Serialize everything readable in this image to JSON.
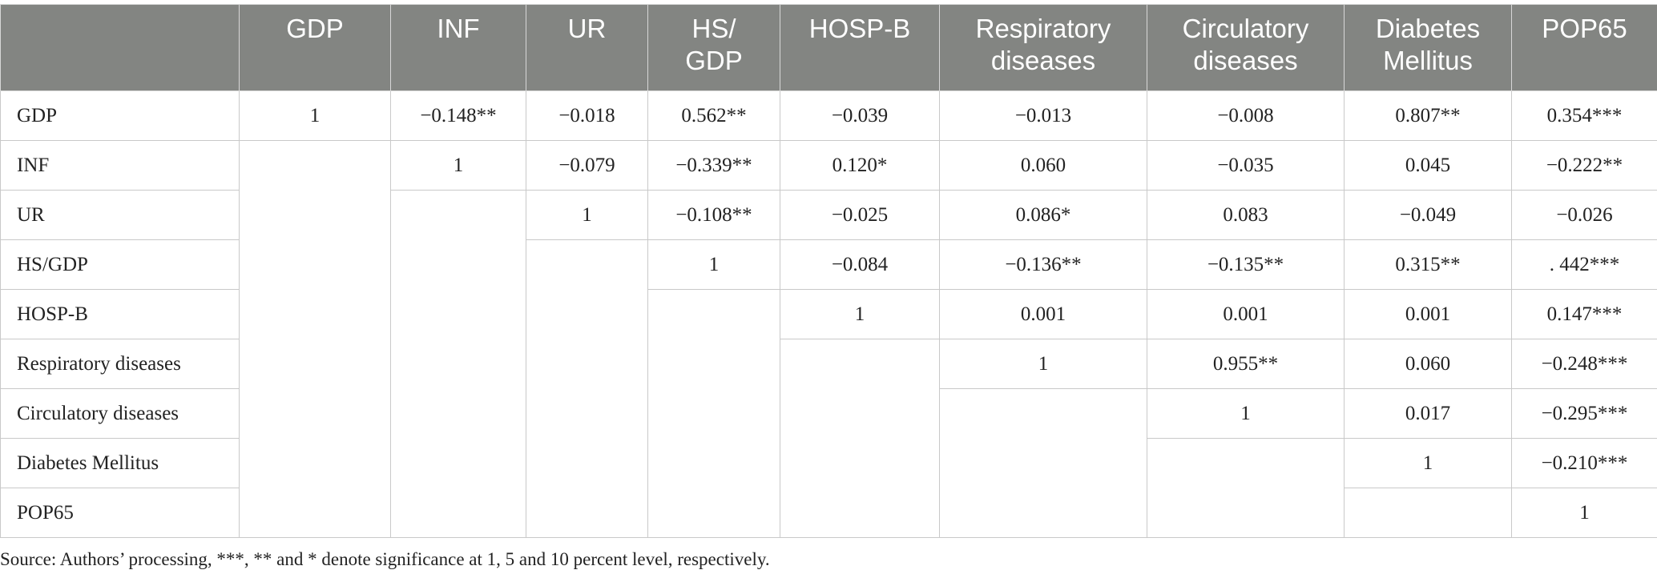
{
  "table": {
    "columns": [
      "",
      "GDP",
      "INF",
      "UR",
      "HS/\nGDP",
      "HOSP-B",
      "Respiratory\ndiseases",
      "Circulatory\ndiseases",
      "Diabetes\nMellitus",
      "POP65"
    ],
    "rows": [
      {
        "label": "GDP",
        "cells": [
          "1",
          "−0.148**",
          "−0.018",
          "0.562**",
          "−0.039",
          "−0.013",
          "−0.008",
          "0.807**",
          "0.354***"
        ]
      },
      {
        "label": "INF",
        "cells": [
          "",
          "1",
          "−0.079",
          "−0.339**",
          "0.120*",
          "0.060",
          "−0.035",
          "0.045",
          "−0.222**"
        ]
      },
      {
        "label": "UR",
        "cells": [
          "",
          "",
          "1",
          "−0.108**",
          "−0.025",
          "0.086*",
          "0.083",
          "−0.049",
          "−0.026"
        ]
      },
      {
        "label": "HS/GDP",
        "cells": [
          "",
          "",
          "",
          "1",
          "−0.084",
          "−0.136**",
          "−0.135**",
          "0.315**",
          ". 442***"
        ]
      },
      {
        "label": "HOSP-B",
        "cells": [
          "",
          "",
          "",
          "",
          "1",
          "0.001",
          "0.001",
          "0.001",
          "0.147***"
        ]
      },
      {
        "label": "Respiratory diseases",
        "cells": [
          "",
          "",
          "",
          "",
          "",
          "1",
          "0.955**",
          "0.060",
          "−0.248***"
        ]
      },
      {
        "label": "Circulatory diseases",
        "cells": [
          "",
          "",
          "",
          "",
          "",
          "",
          "1",
          "0.017",
          "−0.295***"
        ]
      },
      {
        "label": "Diabetes Mellitus",
        "cells": [
          "",
          "",
          "",
          "",
          "",
          "",
          "",
          "1",
          "−0.210***"
        ]
      },
      {
        "label": "POP65",
        "cells": [
          "",
          "",
          "",
          "",
          "",
          "",
          "",
          "",
          "1"
        ]
      }
    ]
  },
  "footnote": "Source: Authors’ processing, ***, ** and * denote significance at 1, 5 and 10 percent level, respectively."
}
